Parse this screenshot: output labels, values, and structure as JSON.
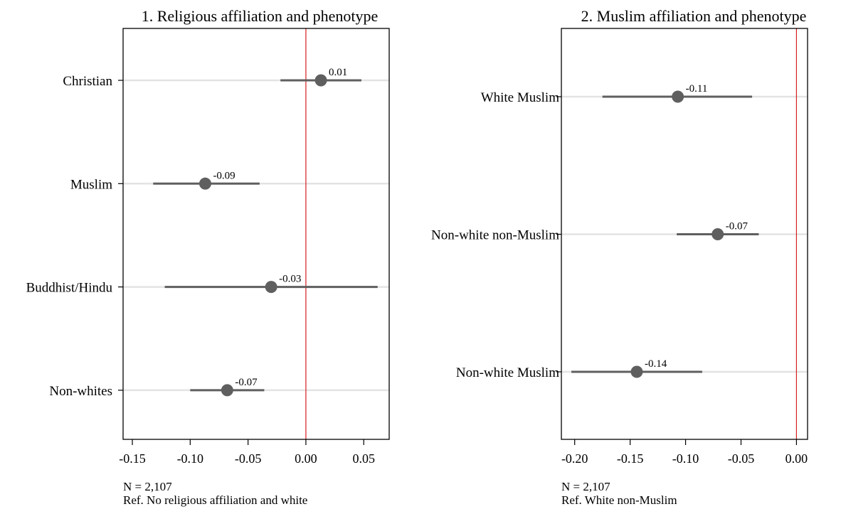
{
  "chart_data": [
    {
      "type": "scatter",
      "subtype": "coefficient-plot",
      "title": "1. Religious affiliation and phenotype",
      "categories": [
        "Christian",
        "Muslim",
        "Buddhist/Hindu",
        "Non-whites"
      ],
      "estimates": [
        0.013,
        -0.087,
        -0.03,
        -0.068
      ],
      "ci_low": [
        -0.022,
        -0.132,
        -0.122,
        -0.1
      ],
      "ci_high": [
        0.048,
        -0.04,
        0.062,
        -0.036
      ],
      "data_labels": [
        "0.01",
        "-0.09",
        "-0.03",
        "-0.07"
      ],
      "xlim": [
        -0.158,
        0.072
      ],
      "xticks": [
        -0.15,
        -0.1,
        -0.05,
        0.0,
        0.05
      ],
      "xtick_labels": [
        "-0.15",
        "-0.10",
        "-0.05",
        "0.00",
        "0.05"
      ],
      "reference_line": 0.0,
      "notes": [
        "N = 2,107",
        "Ref. No religious affiliation and white"
      ]
    },
    {
      "type": "scatter",
      "subtype": "coefficient-plot",
      "title": "2. Muslim affiliation and phenotype",
      "categories": [
        "White Muslim",
        "Non-white non-Muslim",
        "Non-white Muslim"
      ],
      "estimates": [
        -0.107,
        -0.071,
        -0.144
      ],
      "ci_low": [
        -0.175,
        -0.108,
        -0.203
      ],
      "ci_high": [
        -0.04,
        -0.034,
        -0.085
      ],
      "data_labels": [
        "-0.11",
        "-0.07",
        "-0.14"
      ],
      "xlim": [
        -0.212,
        0.01
      ],
      "xticks": [
        -0.2,
        -0.15,
        -0.1,
        -0.05,
        0.0
      ],
      "xtick_labels": [
        "-0.20",
        "-0.15",
        "-0.10",
        "-0.05",
        "0.00"
      ],
      "reference_line": 0.0,
      "notes": [
        "N = 2,107",
        "Ref. White non-Muslim"
      ]
    }
  ],
  "colors": {
    "marker": "#5f5f5f",
    "ci_line": "#5f5f5f",
    "grid": "#e3e3e3",
    "reference_line": "#d62020",
    "frame": "#000000"
  }
}
